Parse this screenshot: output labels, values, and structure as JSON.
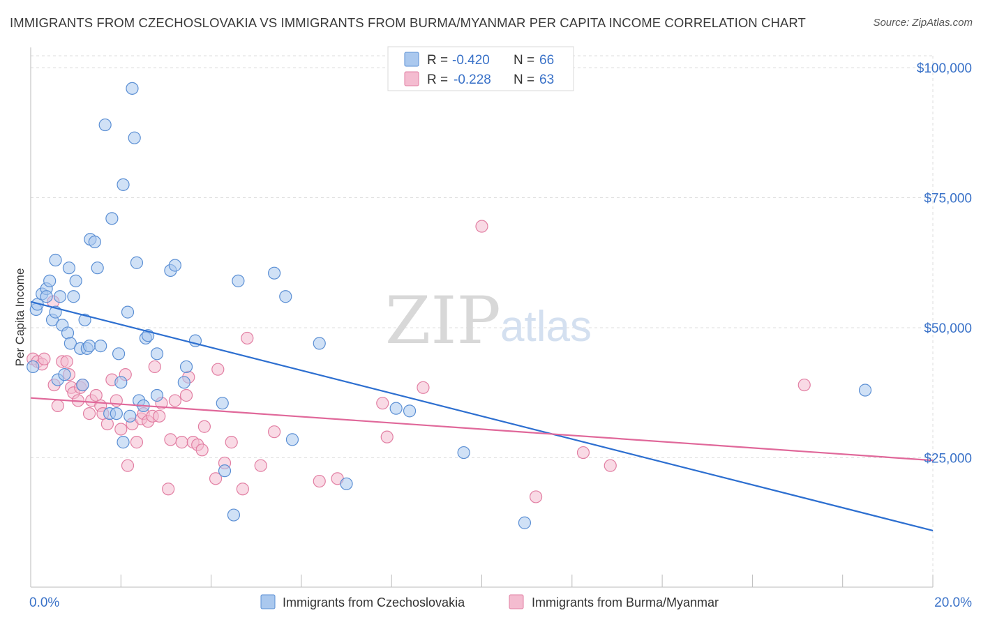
{
  "title": "IMMIGRANTS FROM CZECHOSLOVAKIA VS IMMIGRANTS FROM BURMA/MYANMAR PER CAPITA INCOME CORRELATION CHART",
  "source": "Source: ZipAtlas.com",
  "watermark": {
    "zip": "ZIP",
    "atlas": "atlas"
  },
  "colors": {
    "blue_fill": "#aac8ee",
    "blue_stroke": "#5b8fd4",
    "blue_line": "#2d6fd0",
    "pink_fill": "#f4bcd0",
    "pink_stroke": "#e27fa3",
    "pink_line": "#e0689a",
    "tick_text": "#3a72c8",
    "grid": "#dddddd"
  },
  "legend": {
    "rows": [
      {
        "r_label": "R = ",
        "r_value": "-0.420",
        "n_label": "N = ",
        "n_value": "66"
      },
      {
        "r_label": "R = ",
        "r_value": "-0.228",
        "n_label": "N = ",
        "n_value": "63"
      }
    ]
  },
  "chart_data": {
    "type": "scatter",
    "xlabel": "",
    "ylabel": "Per Capita Income",
    "xlim": [
      0,
      20
    ],
    "ylim": [
      0,
      105000
    ],
    "x_tick_labels": [
      "0.0%",
      "20.0%"
    ],
    "y_ticks": [
      25000,
      50000,
      75000,
      100000
    ],
    "y_tick_labels": [
      "$25,000",
      "$50,000",
      "$75,000",
      "$100,000"
    ],
    "grid": true,
    "legend_position": "top-center",
    "series": [
      {
        "name": "Immigrants from Czechoslovakia",
        "color": "#5b8fd4",
        "points": [
          [
            0.12,
            53500
          ],
          [
            0.15,
            54500
          ],
          [
            0.25,
            56500
          ],
          [
            0.35,
            57500
          ],
          [
            0.35,
            56000
          ],
          [
            0.42,
            59000
          ],
          [
            0.48,
            51500
          ],
          [
            0.55,
            53000
          ],
          [
            0.55,
            63000
          ],
          [
            0.65,
            56000
          ],
          [
            0.7,
            50500
          ],
          [
            0.82,
            49000
          ],
          [
            0.85,
            61500
          ],
          [
            0.88,
            47000
          ],
          [
            0.95,
            56000
          ],
          [
            1.0,
            59000
          ],
          [
            1.1,
            46000
          ],
          [
            1.15,
            39000
          ],
          [
            1.2,
            51500
          ],
          [
            1.25,
            46000
          ],
          [
            1.3,
            46500
          ],
          [
            1.32,
            67000
          ],
          [
            1.42,
            66500
          ],
          [
            1.48,
            61500
          ],
          [
            1.55,
            46500
          ],
          [
            1.65,
            89000
          ],
          [
            1.75,
            33500
          ],
          [
            1.8,
            71000
          ],
          [
            1.9,
            33500
          ],
          [
            1.95,
            45000
          ],
          [
            2.0,
            39500
          ],
          [
            2.05,
            28000
          ],
          [
            2.05,
            77500
          ],
          [
            2.15,
            53000
          ],
          [
            2.2,
            33000
          ],
          [
            2.25,
            96000
          ],
          [
            2.3,
            86500
          ],
          [
            2.35,
            62500
          ],
          [
            2.4,
            36000
          ],
          [
            2.5,
            35000
          ],
          [
            2.55,
            48000
          ],
          [
            2.6,
            48500
          ],
          [
            2.8,
            45000
          ],
          [
            2.8,
            37000
          ],
          [
            3.1,
            61000
          ],
          [
            3.2,
            62000
          ],
          [
            3.4,
            39500
          ],
          [
            3.45,
            42500
          ],
          [
            3.65,
            47500
          ],
          [
            4.25,
            35500
          ],
          [
            4.3,
            22500
          ],
          [
            4.5,
            14000
          ],
          [
            4.6,
            59000
          ],
          [
            5.4,
            60500
          ],
          [
            5.65,
            56000
          ],
          [
            5.8,
            28500
          ],
          [
            6.4,
            47000
          ],
          [
            7.0,
            20000
          ],
          [
            8.1,
            34500
          ],
          [
            8.4,
            34000
          ],
          [
            9.6,
            26000
          ],
          [
            10.95,
            12500
          ],
          [
            18.5,
            38000
          ],
          [
            0.05,
            42500
          ],
          [
            0.6,
            40000
          ],
          [
            0.75,
            41000
          ]
        ]
      },
      {
        "name": "Immigrants from Burma/Myanmar",
        "color": "#e27fa3",
        "points": [
          [
            0.05,
            44000
          ],
          [
            0.15,
            43500
          ],
          [
            0.25,
            43000
          ],
          [
            0.3,
            44000
          ],
          [
            0.5,
            55000
          ],
          [
            0.52,
            39000
          ],
          [
            0.6,
            35000
          ],
          [
            0.7,
            43500
          ],
          [
            0.8,
            43500
          ],
          [
            0.85,
            41000
          ],
          [
            0.9,
            38500
          ],
          [
            0.95,
            37500
          ],
          [
            1.05,
            36000
          ],
          [
            1.1,
            38500
          ],
          [
            1.15,
            39000
          ],
          [
            1.3,
            33500
          ],
          [
            1.35,
            36000
          ],
          [
            1.45,
            37000
          ],
          [
            1.55,
            35000
          ],
          [
            1.6,
            33500
          ],
          [
            1.7,
            31500
          ],
          [
            1.8,
            40000
          ],
          [
            1.9,
            36000
          ],
          [
            2.0,
            30500
          ],
          [
            2.1,
            41000
          ],
          [
            2.15,
            23500
          ],
          [
            2.25,
            31500
          ],
          [
            2.35,
            28000
          ],
          [
            2.45,
            32500
          ],
          [
            2.5,
            33500
          ],
          [
            2.6,
            32000
          ],
          [
            2.7,
            33000
          ],
          [
            2.75,
            42500
          ],
          [
            2.85,
            33000
          ],
          [
            2.9,
            35500
          ],
          [
            3.05,
            19000
          ],
          [
            3.1,
            28500
          ],
          [
            3.2,
            36000
          ],
          [
            3.35,
            28000
          ],
          [
            3.45,
            37000
          ],
          [
            3.5,
            40500
          ],
          [
            3.6,
            28000
          ],
          [
            3.7,
            27500
          ],
          [
            3.8,
            26500
          ],
          [
            3.85,
            31000
          ],
          [
            4.1,
            21000
          ],
          [
            4.15,
            42000
          ],
          [
            4.3,
            24000
          ],
          [
            4.45,
            28000
          ],
          [
            4.7,
            19000
          ],
          [
            4.8,
            48000
          ],
          [
            5.1,
            23500
          ],
          [
            5.4,
            30000
          ],
          [
            6.4,
            20500
          ],
          [
            6.8,
            21000
          ],
          [
            7.8,
            35500
          ],
          [
            7.9,
            29000
          ],
          [
            8.7,
            38500
          ],
          [
            10.0,
            69500
          ],
          [
            11.2,
            17500
          ],
          [
            12.25,
            26000
          ],
          [
            12.85,
            23500
          ],
          [
            17.15,
            39000
          ]
        ]
      }
    ],
    "trend_lines": [
      {
        "series": "Immigrants from Czechoslovakia",
        "x": [
          0,
          20
        ],
        "y": [
          55000,
          11000
        ]
      },
      {
        "series": "Immigrants from Burma/Myanmar",
        "x": [
          0,
          20
        ],
        "y": [
          36500,
          24500
        ]
      }
    ]
  }
}
